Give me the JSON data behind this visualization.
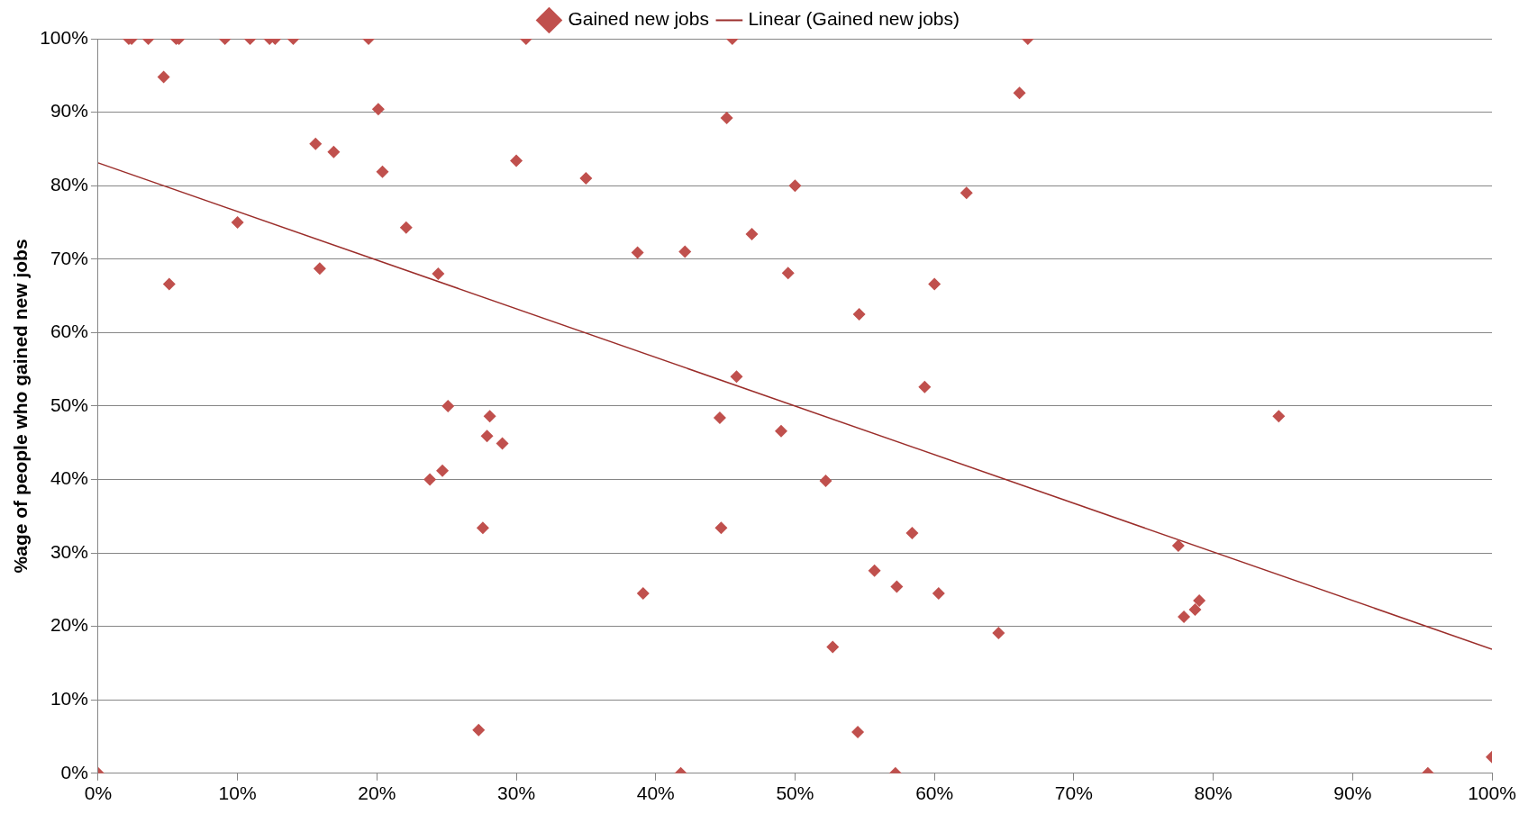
{
  "chart_data": {
    "type": "scatter",
    "ylabel": "%age of people who gained new jobs",
    "marker": "diamond",
    "grid": "y",
    "legend": "top",
    "xlim": [
      0,
      100
    ],
    "ylim": [
      0,
      100
    ],
    "xticks": [
      {
        "value": 0,
        "label": "0%"
      },
      {
        "value": 10,
        "label": "10%"
      },
      {
        "value": 20,
        "label": "20%"
      },
      {
        "value": 30,
        "label": "30%"
      },
      {
        "value": 40,
        "label": "40%"
      },
      {
        "value": 50,
        "label": "50%"
      },
      {
        "value": 60,
        "label": "60%"
      },
      {
        "value": 70,
        "label": "70%"
      },
      {
        "value": 80,
        "label": "80%"
      },
      {
        "value": 90,
        "label": "90%"
      },
      {
        "value": 100,
        "label": "100%"
      }
    ],
    "yticks": [
      {
        "value": 0,
        "label": "0%"
      },
      {
        "value": 10,
        "label": "10%"
      },
      {
        "value": 20,
        "label": "20%"
      },
      {
        "value": 30,
        "label": "30%"
      },
      {
        "value": 40,
        "label": "40%"
      },
      {
        "value": 50,
        "label": "50%"
      },
      {
        "value": 60,
        "label": "60%"
      },
      {
        "value": 70,
        "label": "70%"
      },
      {
        "value": 80,
        "label": "80%"
      },
      {
        "value": 90,
        "label": "90%"
      },
      {
        "value": 100,
        "label": "100%"
      }
    ],
    "series": [
      {
        "name": "Gained new jobs",
        "color": "#c0504d",
        "x": [
          0,
          2.2,
          2.4,
          3.6,
          4.7,
          5.1,
          5.6,
          5.8,
          9.1,
          10,
          10.9,
          12.3,
          12.7,
          14,
          15.6,
          15.9,
          16.9,
          19.4,
          20.1,
          20.4,
          22.1,
          23.8,
          24.4,
          24.7,
          25.1,
          27.3,
          27.6,
          27.9,
          28.1,
          29,
          30,
          30.7,
          35,
          38.7,
          39.1,
          41.8,
          42.1,
          44.6,
          44.7,
          45.1,
          45.5,
          45.8,
          46.9,
          49,
          49.5,
          50,
          52.2,
          52.7,
          54.5,
          54.6,
          55.7,
          57.2,
          57.3,
          58.4,
          59.3,
          60,
          60.3,
          62.3,
          64.6,
          66.1,
          66.7,
          77.5,
          77.9,
          78.7,
          79,
          84.7,
          95.4,
          100
        ],
        "values": [
          0,
          100,
          100,
          100,
          94.8,
          66.6,
          100,
          100,
          100,
          75,
          100,
          100,
          100,
          100,
          85.7,
          68.7,
          84.6,
          100,
          90.4,
          81.9,
          74.3,
          40,
          68,
          41.2,
          50,
          5.9,
          33.4,
          45.9,
          48.6,
          44.9,
          83.4,
          100,
          81,
          70.9,
          24.5,
          0,
          71,
          48.4,
          33.4,
          89.2,
          100,
          54,
          73.4,
          46.6,
          68.1,
          80,
          39.8,
          17.2,
          5.6,
          62.5,
          27.6,
          0,
          25.4,
          32.7,
          52.6,
          66.6,
          24.5,
          79,
          19.1,
          92.6,
          100,
          31,
          21.3,
          22.3,
          23.5,
          48.6,
          0,
          2.2
        ]
      },
      {
        "name": "Linear (Gained new jobs)",
        "type": "line",
        "marker": "none",
        "color": "#9b2d2a",
        "x": [
          0,
          100
        ],
        "values": [
          83.1,
          16.9
        ]
      }
    ]
  }
}
